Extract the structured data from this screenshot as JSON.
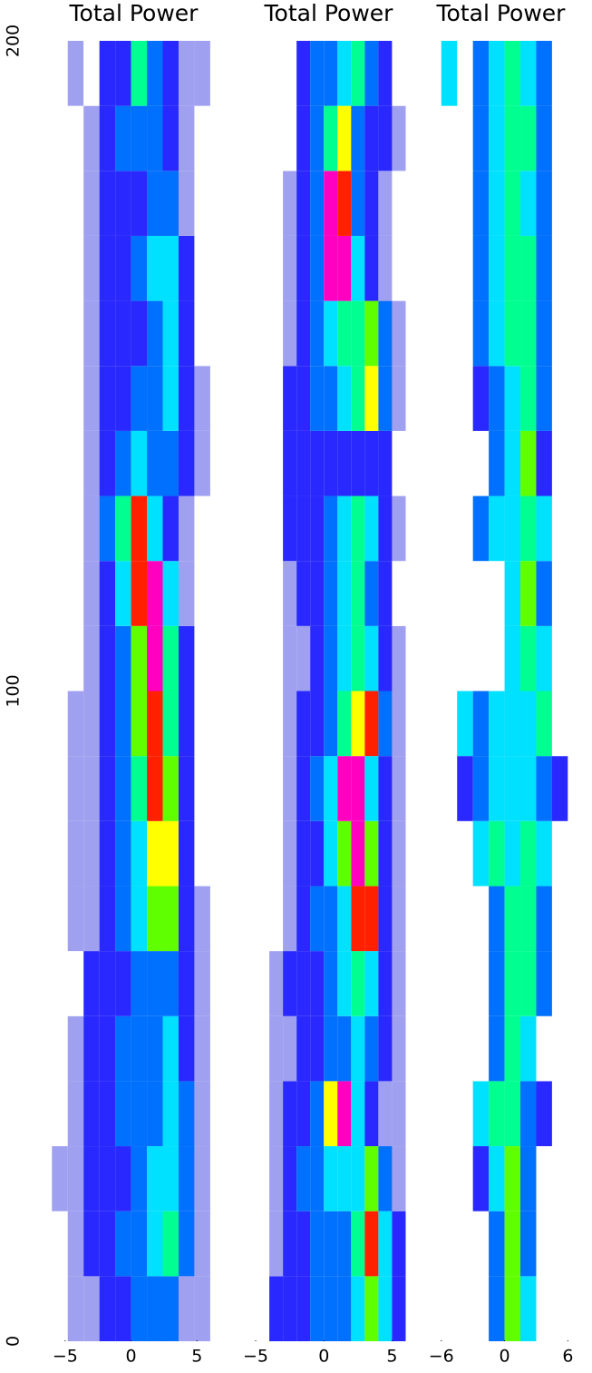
{
  "chart_data": {
    "type": "heatmap",
    "ylim": [
      0,
      200
    ],
    "yticks": [
      0,
      100,
      200
    ],
    "colormap": [
      "#ffffff",
      "#a0a0f0",
      "#2828ff",
      "#0070ff",
      "#00e0ff",
      "#00ff90",
      "#60ff00",
      "#ffff00",
      "#ff2000",
      "#ff00c0"
    ],
    "panels": [
      {
        "title": "Total Power",
        "xlim": [
          -6.5,
          6.9
        ],
        "xticks": [
          {
            "value": -5,
            "label": "−5"
          },
          0,
          5
        ],
        "bins": [
          -6,
          -4.8,
          -3.6,
          -2.4,
          -1.2,
          0,
          1.2,
          2.4,
          3.6,
          4.8,
          6
        ],
        "rows": [
          [
            0,
            1,
            1,
            2,
            2,
            3,
            3,
            3,
            1,
            1
          ],
          [
            0,
            1,
            2,
            2,
            3,
            3,
            4,
            5,
            3,
            1
          ],
          [
            1,
            1,
            2,
            2,
            2,
            3,
            4,
            4,
            3,
            1
          ],
          [
            0,
            1,
            2,
            2,
            3,
            3,
            3,
            4,
            3,
            1
          ],
          [
            0,
            1,
            2,
            2,
            3,
            3,
            3,
            4,
            2,
            1
          ],
          [
            0,
            0,
            2,
            2,
            2,
            3,
            3,
            3,
            2,
            1
          ],
          [
            0,
            1,
            1,
            2,
            3,
            4,
            6,
            6,
            2,
            1
          ],
          [
            0,
            1,
            1,
            2,
            3,
            4,
            7,
            7,
            2,
            0
          ],
          [
            0,
            1,
            1,
            2,
            3,
            5,
            8,
            6,
            2,
            0
          ],
          [
            0,
            1,
            1,
            2,
            3,
            6,
            8,
            5,
            2,
            0
          ],
          [
            0,
            0,
            1,
            2,
            3,
            6,
            9,
            5,
            2,
            0
          ],
          [
            0,
            0,
            1,
            2,
            4,
            8,
            9,
            4,
            1,
            0
          ],
          [
            0,
            0,
            1,
            3,
            5,
            8,
            4,
            2,
            1,
            0
          ],
          [
            0,
            0,
            1,
            2,
            3,
            4,
            3,
            3,
            2,
            1
          ],
          [
            0,
            0,
            1,
            2,
            2,
            3,
            3,
            4,
            2,
            1
          ],
          [
            0,
            0,
            1,
            2,
            2,
            2,
            3,
            4,
            2,
            0
          ],
          [
            0,
            0,
            1,
            2,
            2,
            3,
            4,
            4,
            2,
            0
          ],
          [
            0,
            0,
            1,
            2,
            2,
            2,
            3,
            3,
            1,
            0
          ],
          [
            0,
            0,
            1,
            2,
            3,
            3,
            3,
            2,
            1,
            0
          ],
          [
            0,
            1,
            0,
            2,
            2,
            5,
            3,
            2,
            1,
            1
          ]
        ]
      },
      {
        "title": "Total Power",
        "xlim": [
          -5.8,
          6.5
        ],
        "xticks": [
          {
            "value": -5,
            "label": "−5"
          },
          0,
          5
        ],
        "bins": [
          -4,
          -3,
          -2,
          -1,
          0,
          1,
          2,
          3,
          4,
          5,
          6
        ],
        "rows": [
          [
            2,
            2,
            2,
            3,
            3,
            3,
            4,
            6,
            4,
            2
          ],
          [
            1,
            2,
            2,
            3,
            3,
            3,
            5,
            8,
            4,
            2
          ],
          [
            1,
            2,
            3,
            3,
            4,
            4,
            4,
            6,
            3,
            1
          ],
          [
            1,
            2,
            2,
            3,
            7,
            9,
            4,
            2,
            1,
            1
          ],
          [
            1,
            1,
            2,
            2,
            3,
            3,
            4,
            3,
            2,
            1
          ],
          [
            1,
            2,
            2,
            2,
            3,
            4,
            5,
            4,
            2,
            1
          ],
          [
            0,
            1,
            2,
            3,
            3,
            4,
            8,
            8,
            2,
            1
          ],
          [
            0,
            1,
            2,
            2,
            4,
            6,
            9,
            6,
            2,
            1
          ],
          [
            0,
            1,
            2,
            3,
            4,
            9,
            9,
            4,
            2,
            1
          ],
          [
            0,
            1,
            2,
            2,
            3,
            5,
            7,
            8,
            3,
            1
          ],
          [
            0,
            1,
            1,
            2,
            3,
            4,
            5,
            4,
            2,
            1
          ],
          [
            0,
            1,
            2,
            2,
            3,
            4,
            5,
            3,
            2,
            0
          ],
          [
            0,
            2,
            2,
            2,
            3,
            4,
            5,
            4,
            2,
            1
          ],
          [
            0,
            2,
            2,
            2,
            2,
            2,
            2,
            2,
            2,
            0
          ],
          [
            0,
            2,
            2,
            3,
            3,
            4,
            5,
            7,
            3,
            1
          ],
          [
            0,
            1,
            2,
            3,
            4,
            5,
            5,
            6,
            3,
            1
          ],
          [
            0,
            1,
            2,
            3,
            9,
            9,
            4,
            2,
            1,
            0
          ],
          [
            0,
            1,
            2,
            3,
            9,
            8,
            3,
            2,
            1,
            0
          ],
          [
            0,
            0,
            2,
            3,
            5,
            7,
            3,
            2,
            2,
            1
          ],
          [
            0,
            0,
            2,
            3,
            3,
            4,
            5,
            3,
            2,
            0
          ]
        ]
      },
      {
        "title": "Total Power",
        "xlim": [
          -8.3,
          7.6
        ],
        "xticks": [
          {
            "value": -6,
            "label": "−6"
          },
          0,
          6
        ],
        "bins": [
          -7.5,
          -6,
          -4.5,
          -3,
          -1.5,
          0,
          1.5,
          3,
          4.5,
          6,
          7.5
        ],
        "rows": [
          [
            0,
            0,
            0,
            0,
            3,
            6,
            4,
            0,
            0,
            0
          ],
          [
            0,
            0,
            0,
            0,
            3,
            6,
            3,
            0,
            0,
            0
          ],
          [
            0,
            0,
            0,
            2,
            4,
            6,
            3,
            0,
            0,
            0
          ],
          [
            0,
            0,
            0,
            4,
            5,
            5,
            3,
            2,
            0,
            0
          ],
          [
            0,
            0,
            0,
            0,
            3,
            5,
            4,
            0,
            0,
            0
          ],
          [
            0,
            0,
            0,
            0,
            3,
            5,
            5,
            3,
            0,
            0
          ],
          [
            0,
            0,
            0,
            0,
            3,
            5,
            5,
            3,
            0,
            0
          ],
          [
            0,
            0,
            0,
            4,
            5,
            4,
            5,
            4,
            0,
            0
          ],
          [
            0,
            0,
            2,
            3,
            4,
            4,
            4,
            3,
            2,
            0
          ],
          [
            0,
            0,
            4,
            3,
            4,
            4,
            4,
            5,
            0,
            0
          ],
          [
            0,
            0,
            0,
            0,
            0,
            4,
            5,
            4,
            0,
            0
          ],
          [
            0,
            0,
            0,
            0,
            0,
            4,
            6,
            3,
            0,
            0
          ],
          [
            0,
            0,
            0,
            3,
            4,
            4,
            5,
            4,
            0,
            0
          ],
          [
            0,
            0,
            0,
            0,
            3,
            4,
            6,
            2,
            0,
            0
          ],
          [
            0,
            0,
            0,
            2,
            3,
            4,
            5,
            3,
            0,
            0
          ],
          [
            0,
            0,
            0,
            3,
            4,
            5,
            5,
            3,
            0,
            0
          ],
          [
            0,
            0,
            0,
            3,
            4,
            5,
            5,
            3,
            0,
            0
          ],
          [
            0,
            0,
            0,
            3,
            4,
            5,
            4,
            3,
            0,
            0
          ],
          [
            0,
            0,
            0,
            3,
            4,
            5,
            5,
            3,
            0,
            0
          ],
          [
            0,
            4,
            0,
            3,
            4,
            5,
            4,
            3,
            0,
            0
          ]
        ]
      }
    ]
  }
}
